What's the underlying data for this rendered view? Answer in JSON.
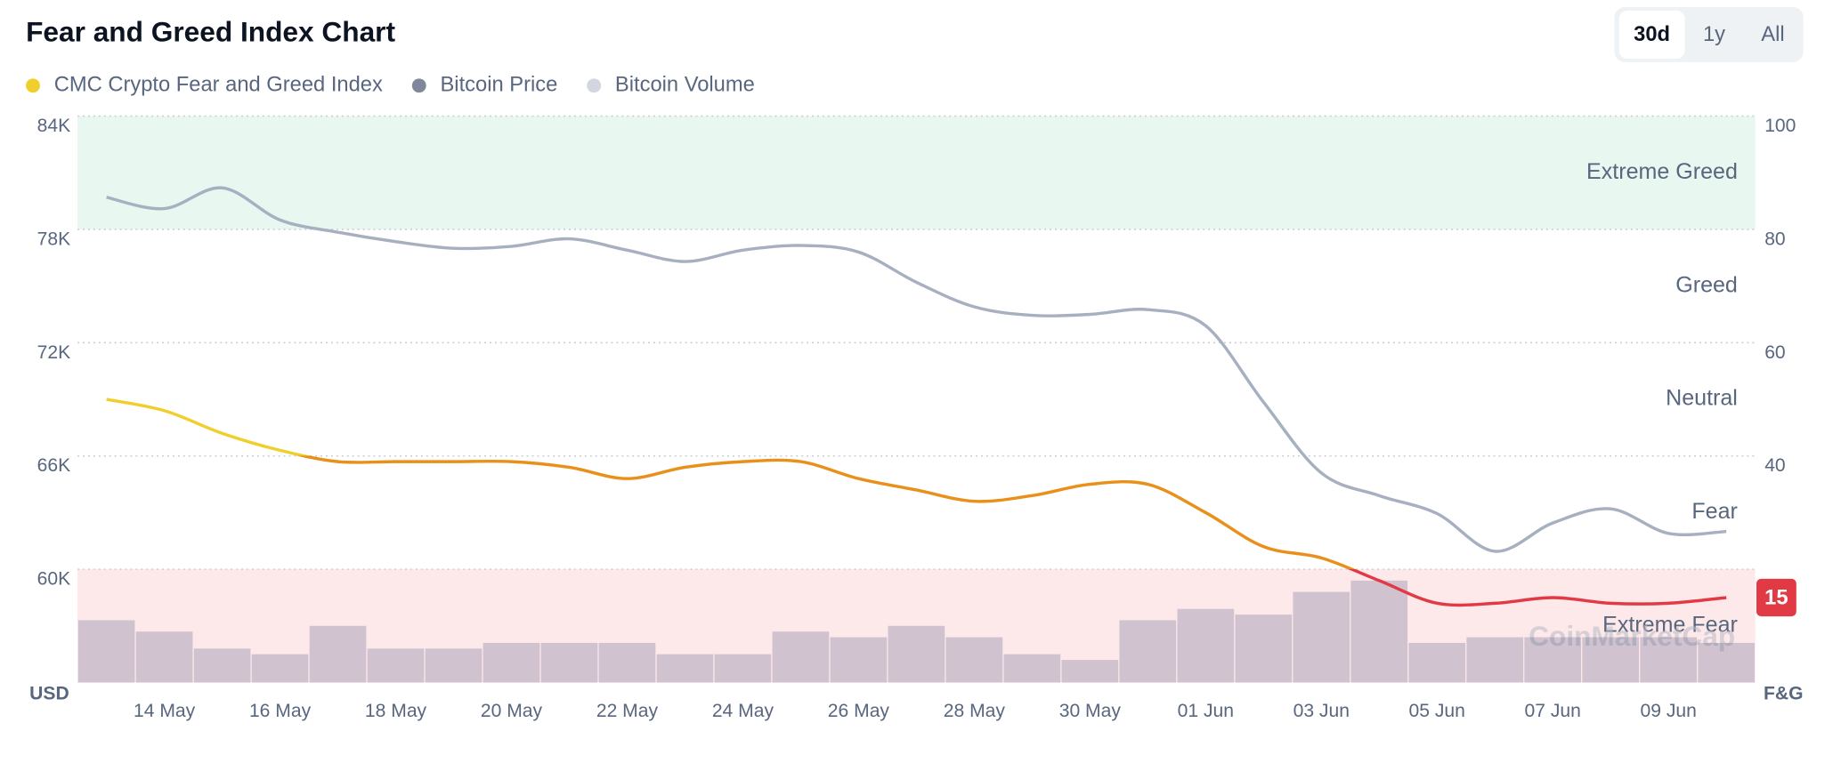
{
  "chart_data": {
    "type": "line",
    "title": "Fear and Greed Index Chart",
    "categories": [
      null,
      "14 May",
      null,
      "16 May",
      null,
      "18 May",
      null,
      "20 May",
      null,
      "22 May",
      null,
      "24 May",
      null,
      "26 May",
      null,
      "28 May",
      null,
      "30 May",
      null,
      "01 Jun",
      null,
      "03 Jun",
      null,
      "05 Jun",
      null,
      "07 Jun",
      null,
      "09 Jun",
      null
    ],
    "series": [
      {
        "name": "CMC Crypto Fear and Greed Index",
        "color": "#f0cf2c",
        "axis": "y2",
        "values": [
          50,
          48,
          44,
          41,
          39,
          39,
          39,
          39,
          38,
          36,
          38,
          39,
          39,
          36,
          34,
          32,
          33,
          35,
          35,
          30,
          24,
          22,
          18,
          14,
          14,
          15,
          14,
          14,
          15
        ]
      },
      {
        "name": "Bitcoin Price",
        "color": "#7e889a",
        "line_color": "#a7b0c0",
        "values": [
          79700,
          79100,
          80200,
          78500,
          77850,
          77350,
          77000,
          77100,
          77500,
          76900,
          76300,
          76900,
          77150,
          76800,
          75200,
          73900,
          73450,
          73500,
          73750,
          72900,
          68850,
          65100,
          63900,
          62950,
          60950,
          62450,
          63200,
          61900,
          62000
        ]
      },
      {
        "name": "Bitcoin Volume",
        "color": "#d3d6e2",
        "type": "bar",
        "values": [
          11,
          9,
          6,
          5,
          10,
          6,
          6,
          7,
          7,
          7,
          5,
          5,
          9,
          8,
          10,
          8,
          5,
          4,
          11,
          13,
          12,
          16,
          18,
          7,
          8,
          8,
          8,
          8,
          7
        ]
      }
    ],
    "ylim": [
      54000,
      84000
    ],
    "yticks": [
      {
        "value": 60000,
        "label": "60K"
      },
      {
        "value": 66000,
        "label": "66K"
      },
      {
        "value": 72000,
        "label": "72K"
      },
      {
        "value": 78000,
        "label": "78K"
      },
      {
        "value": 84000,
        "label": "84K"
      }
    ],
    "y2lim": [
      0,
      100
    ],
    "y2ticks": [
      40,
      60,
      80,
      100
    ],
    "volume_lim": [
      0,
      100
    ],
    "ylabel": "USD",
    "y2label": "F&G",
    "grid": true,
    "zones": [
      {
        "name": "Extreme Fear",
        "range": [
          0,
          20
        ],
        "fill": "#fde8ea",
        "line_color": "#e23a45"
      },
      {
        "name": "Fear",
        "range": [
          20,
          40
        ],
        "fill": null,
        "line_color": "#e8901a"
      },
      {
        "name": "Neutral",
        "range": [
          40,
          60
        ],
        "fill": null,
        "line_color": "#f0cf2c"
      },
      {
        "name": "Greed",
        "range": [
          60,
          80
        ],
        "fill": null,
        "line_color": "#93d900"
      },
      {
        "name": "Extreme Greed",
        "range": [
          80,
          100
        ],
        "fill": "#e8f8f0",
        "line_color": "#16c784"
      }
    ],
    "watermark": "CoinMarketCap"
  },
  "ui": {
    "ranges": [
      "30d",
      "1y",
      "All"
    ],
    "selected": 0
  }
}
